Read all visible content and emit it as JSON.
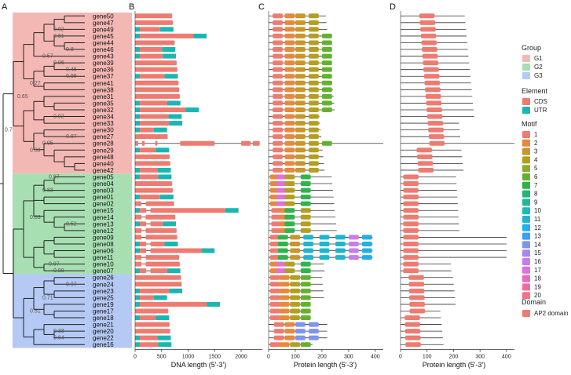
{
  "panels": {
    "a": "A",
    "b": "B",
    "c": "C",
    "d": "D"
  },
  "genes": [
    "gene50",
    "gene47",
    "gene49",
    "gene45",
    "gene44",
    "gene46",
    "gene43",
    "gene39",
    "gene36",
    "gene37",
    "gene41",
    "gene38",
    "gene31",
    "gene35",
    "gene32",
    "gene34",
    "gene33",
    "gene30",
    "gene27",
    "gene28",
    "gene29",
    "gene48",
    "gene40",
    "gene42",
    "gene05",
    "gene04",
    "gene03",
    "gene01",
    "gene02",
    "gene15",
    "gene14",
    "gene13",
    "gene12",
    "gene09",
    "gene08",
    "gene06",
    "gene11",
    "gene10",
    "gene07",
    "gene26",
    "gene24",
    "gene23",
    "gene25",
    "gene19",
    "gene17",
    "gene18",
    "gene21",
    "gene20",
    "gene22",
    "gene16"
  ],
  "group_of_gene": [
    "G1",
    "G1",
    "G1",
    "G1",
    "G1",
    "G1",
    "G1",
    "G1",
    "G1",
    "G1",
    "G1",
    "G1",
    "G1",
    "G1",
    "G1",
    "G1",
    "G1",
    "G1",
    "G1",
    "G1",
    "G1",
    "G1",
    "G1",
    "G1",
    "G2",
    "G2",
    "G2",
    "G2",
    "G2",
    "G2",
    "G2",
    "G2",
    "G2",
    "G2",
    "G2",
    "G2",
    "G2",
    "G2",
    "G2",
    "G3",
    "G3",
    "G3",
    "G3",
    "G3",
    "G3",
    "G3",
    "G3",
    "G3",
    "G3",
    "G3"
  ],
  "bootstrap": [
    {
      "label": "0.92",
      "row": 2.5
    },
    {
      "label": "0.81",
      "row": 3.5
    },
    {
      "label": "0.8",
      "row": 5.5
    },
    {
      "label": "0.57",
      "row": 6.5
    },
    {
      "label": "0.96",
      "row": 7.5
    },
    {
      "label": "0.46",
      "row": 8.5
    },
    {
      "label": "0.99",
      "row": 9.5
    },
    {
      "label": "0.27",
      "row": 10.5
    },
    {
      "label": "0.65",
      "row": 12.5
    },
    {
      "label": "0.92",
      "row": 15.5
    },
    {
      "label": "0.7",
      "row": 17.5
    },
    {
      "label": "0.87",
      "row": 18.5
    },
    {
      "label": "0.95",
      "row": 19.5
    },
    {
      "label": "0.39",
      "row": 20.5
    },
    {
      "label": "0.97",
      "row": 24.5
    },
    {
      "label": "0.83",
      "row": 26.5
    },
    {
      "label": "0.83",
      "row": 30.5
    },
    {
      "label": "0.52",
      "row": 31.5
    },
    {
      "label": "0.97",
      "row": 37.5
    },
    {
      "label": "0.99",
      "row": 38.5
    },
    {
      "label": "0.97",
      "row": 40.5
    },
    {
      "label": "0.71",
      "row": 42.5
    },
    {
      "label": "0.51",
      "row": 44.5
    },
    {
      "label": "0.33",
      "row": 47.5
    },
    {
      "label": "0.64",
      "row": 48.5
    }
  ],
  "axes": {
    "b": {
      "title": "DNA length (5'-3')",
      "ticks": [
        0,
        500,
        1000,
        1500,
        2000
      ],
      "max": 2400
    },
    "c": {
      "title": "Protein length (5'-3')",
      "ticks": [
        0,
        100,
        200,
        300,
        400
      ],
      "max": 430
    },
    "d": {
      "title": "Protein length (5'-3')",
      "ticks": [
        0,
        100,
        200,
        300,
        400
      ],
      "max": 430
    }
  },
  "legend": {
    "group_title": "Group",
    "groups": [
      {
        "name": "G1",
        "color": "#f4b8b4"
      },
      {
        "name": "G2",
        "color": "#a7dfb2"
      },
      {
        "name": "G3",
        "color": "#b4c9f4"
      }
    ],
    "element_title": "Element",
    "elements": [
      {
        "name": "CDS",
        "color": "#ee7b70"
      },
      {
        "name": "UTR",
        "color": "#1ab7b2"
      }
    ],
    "motif_title": "Motif",
    "motifs": [
      {
        "name": "1",
        "color": "#ee7b70"
      },
      {
        "name": "2",
        "color": "#e7883d"
      },
      {
        "name": "3",
        "color": "#c8962a"
      },
      {
        "name": "4",
        "color": "#b39f1f"
      },
      {
        "name": "5",
        "color": "#8fab2a"
      },
      {
        "name": "6",
        "color": "#64b12f"
      },
      {
        "name": "7",
        "color": "#2fb44a"
      },
      {
        "name": "8",
        "color": "#22b573"
      },
      {
        "name": "9",
        "color": "#1fb79a"
      },
      {
        "name": "10",
        "color": "#20b8b8"
      },
      {
        "name": "11",
        "color": "#1fb5d0"
      },
      {
        "name": "12",
        "color": "#22aee6"
      },
      {
        "name": "13",
        "color": "#3e9ff1"
      },
      {
        "name": "14",
        "color": "#7e93f2"
      },
      {
        "name": "15",
        "color": "#a687ef"
      },
      {
        "name": "16",
        "color": "#c77de9"
      },
      {
        "name": "17",
        "color": "#e070dc"
      },
      {
        "name": "18",
        "color": "#ec67c3"
      },
      {
        "name": "19",
        "color": "#f06aa4"
      },
      {
        "name": "20",
        "color": "#f07486"
      }
    ],
    "domain_title": "Domain",
    "domains": [
      {
        "name": "AP2 domain",
        "color": "#ee7b70"
      }
    ]
  }
}
